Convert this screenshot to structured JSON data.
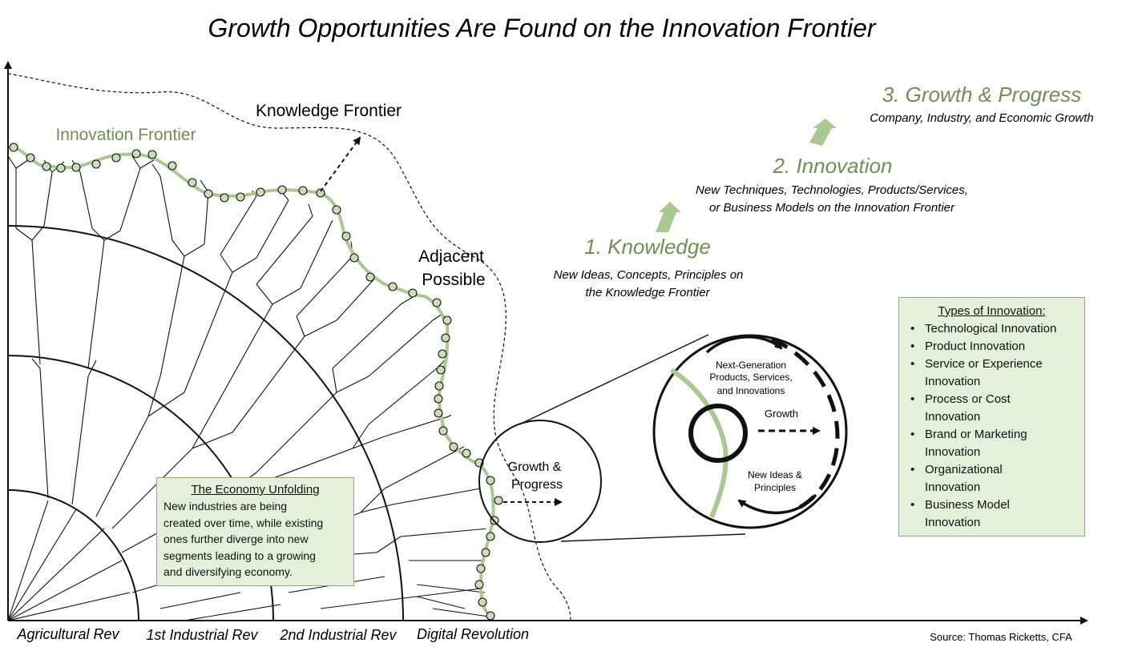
{
  "title": "Growth Opportunities Are Found on the Innovation Frontier",
  "labels": {
    "knowledge_frontier": "Knowledge Frontier",
    "innovation_frontier": "Innovation Frontier",
    "adjacent_possible_line1": "Adjacent",
    "adjacent_possible_line2": "Possible",
    "growth_progress_line1": "Growth &",
    "growth_progress_line2": "Progress"
  },
  "steps": [
    {
      "title": "1. Knowledge",
      "lines": [
        "New Ideas, Concepts, Principles on",
        "the Knowledge Frontier"
      ]
    },
    {
      "title": "2. Innovation",
      "lines": [
        "New Techniques, Technologies, Products/Services,",
        "or Business Models on the Innovation Frontier"
      ]
    },
    {
      "title": "3. Growth & Progress",
      "lines": [
        "Company, Industry, and Economic Growth"
      ]
    }
  ],
  "zoom": {
    "next_gen_lines": [
      "Next-Generation",
      "Products, Services,",
      "and Innovations"
    ],
    "growth": "Growth",
    "new_ideas_lines": [
      "New Ideas &",
      "Principles"
    ]
  },
  "economy_box": {
    "heading": "The Economy Unfolding",
    "lines": [
      "New industries are being",
      "created over time, while existing",
      "ones further diverge into new",
      "segments leading to a growing",
      "and diversifying economy."
    ]
  },
  "types_box": {
    "heading": "Types of Innovation:",
    "items": [
      [
        "Technological Innovation"
      ],
      [
        "Product Innovation"
      ],
      [
        "Service or Experience",
        "Innovation"
      ],
      [
        "Process or Cost",
        "Innovation"
      ],
      [
        "Brand or Marketing",
        "Innovation"
      ],
      [
        "Organizational",
        "Innovation"
      ],
      [
        "Business Model",
        "Innovation"
      ]
    ]
  },
  "eras": [
    "Agricultural Rev",
    "1st Industrial Rev",
    "2nd Industrial Rev",
    "Digital Revolution"
  ],
  "source": "Source: Thomas Ricketts, CFA",
  "colors": {
    "green": "#6f8f55",
    "frontier_green": "#a8c990",
    "box_fill": "#e4f0d9",
    "box_border": "#8fae74"
  }
}
